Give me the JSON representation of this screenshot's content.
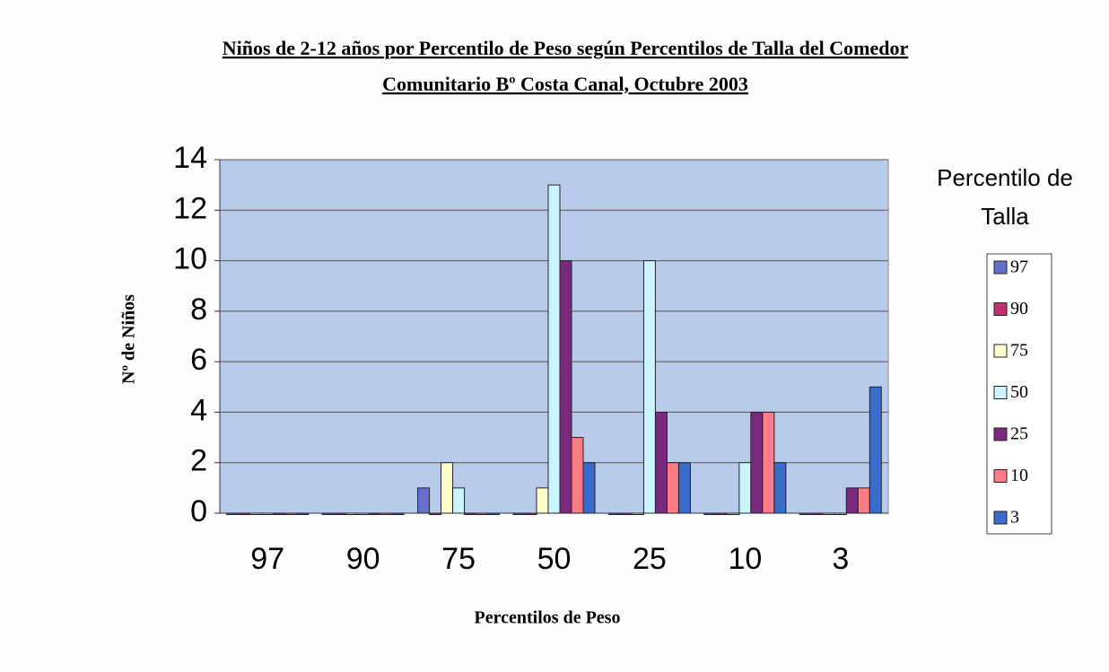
{
  "chart_data": {
    "type": "bar",
    "title": [
      "Niños de 2-12 años por Percentilo de Peso según Percentilos de Talla del Comedor",
      "Comunitario Bº Costa Canal, Octubre 2003"
    ],
    "x_label": "Percentilos de Peso",
    "y_label": "Nº de Niños",
    "legend_title": [
      "Percentilo de",
      "Talla"
    ],
    "legend_position": "right",
    "categories": [
      "97",
      "90",
      "75",
      "50",
      "25",
      "10",
      "3"
    ],
    "series": [
      {
        "name": "97",
        "color": "#6670cc",
        "values": [
          0,
          0,
          1,
          0,
          0,
          0,
          0
        ]
      },
      {
        "name": "90",
        "color": "#c0306e",
        "values": [
          0,
          0,
          0,
          0,
          0,
          0,
          0
        ]
      },
      {
        "name": "75",
        "color": "#ffffcc",
        "values": [
          0,
          0,
          2,
          1,
          0,
          0,
          0
        ]
      },
      {
        "name": "50",
        "color": "#ccf4ff",
        "values": [
          0,
          0,
          1,
          13,
          10,
          2,
          0
        ]
      },
      {
        "name": "25",
        "color": "#7a2a7e",
        "values": [
          0,
          0,
          0,
          10,
          4,
          4,
          1
        ]
      },
      {
        "name": "10",
        "color": "#ff7c86",
        "values": [
          0,
          0,
          0,
          3,
          2,
          4,
          1
        ]
      },
      {
        "name": "3",
        "color": "#3a6ccc",
        "values": [
          0,
          0,
          0,
          2,
          2,
          2,
          5
        ]
      }
    ],
    "ylim": [
      0,
      14
    ],
    "yticks": [
      0,
      2,
      4,
      6,
      8,
      10,
      12,
      14
    ],
    "grid": true
  }
}
